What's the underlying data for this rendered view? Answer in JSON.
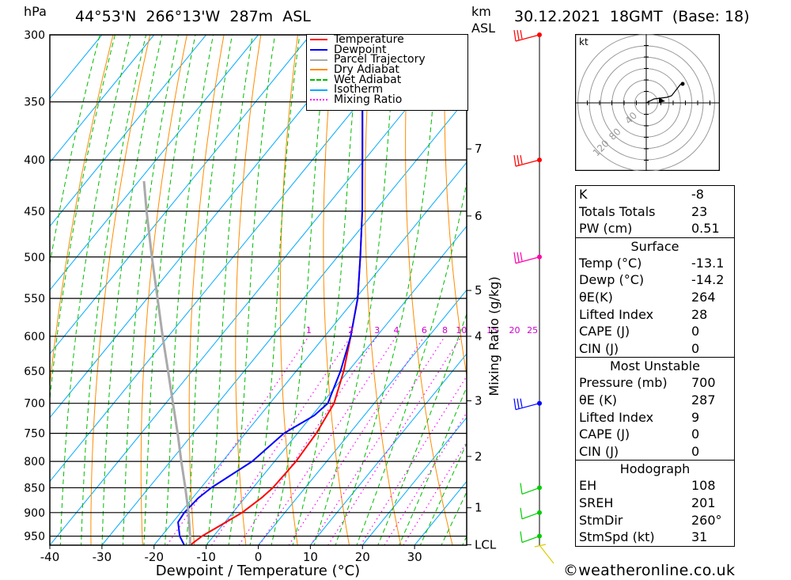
{
  "header": {
    "pressure_unit": "hPa",
    "location": "44°53'N  266°13'W  287m  ASL",
    "km_label": "km",
    "asl_label": "ASL",
    "datetime": "30.12.2021  18GMT  (Base: 18)"
  },
  "legend": {
    "items": [
      {
        "label": "Temperature",
        "color": "#ff0000",
        "style": "solid"
      },
      {
        "label": "Dewpoint",
        "color": "#0000ff",
        "style": "solid"
      },
      {
        "label": "Parcel Trajectory",
        "color": "#aaaaaa",
        "style": "solid"
      },
      {
        "label": "Dry Adiabat",
        "color": "#ff8c00",
        "style": "solid"
      },
      {
        "label": "Wet Adiabat",
        "color": "#00bb00",
        "style": "dashed"
      },
      {
        "label": "Isotherm",
        "color": "#00aaff",
        "style": "solid"
      },
      {
        "label": "Mixing Ratio",
        "color": "#ff00ff",
        "style": "dotted"
      }
    ]
  },
  "chart_data": {
    "type": "line",
    "title": "",
    "xlabel": "Dewpoint / Temperature (°C)",
    "ylabel": "hPa",
    "y2label": "Mixing Ratio (g/kg)",
    "xlim": [
      -40,
      40
    ],
    "ylim": [
      970,
      300
    ],
    "y_scale": "log",
    "skew": true,
    "x_ticks": [
      "-40",
      "-30",
      "-20",
      "-10",
      "0",
      "10",
      "20",
      "30"
    ],
    "x_tick_values": [
      -40,
      -30,
      -20,
      -10,
      0,
      10,
      20,
      30
    ],
    "pressure_levels": [
      300,
      350,
      400,
      450,
      500,
      550,
      600,
      650,
      700,
      750,
      800,
      850,
      900,
      950
    ],
    "km_ticks": [
      {
        "label": "1",
        "p": 890
      },
      {
        "label": "2",
        "p": 791
      },
      {
        "label": "3",
        "p": 696
      },
      {
        "label": "4",
        "p": 600
      },
      {
        "label": "5",
        "p": 540
      },
      {
        "label": "6",
        "p": 455
      },
      {
        "label": "7",
        "p": 390
      },
      {
        "label": "LCL",
        "p": 969
      }
    ],
    "mixing_ratio_labels": [
      "1",
      "2",
      "3",
      "4",
      "6",
      "8",
      "10",
      "15",
      "20",
      "25"
    ],
    "series": [
      {
        "name": "Temperature",
        "color": "#ff0000",
        "points": [
          [
            970,
            -13.1
          ],
          [
            950,
            -12.2
          ],
          [
            920,
            -9.8
          ],
          [
            900,
            -8.2
          ],
          [
            870,
            -6.8
          ],
          [
            850,
            -6.2
          ],
          [
            800,
            -5.9
          ],
          [
            750,
            -6.4
          ],
          [
            700,
            -7.7
          ],
          [
            650,
            -10.9
          ],
          [
            600,
            -15.0
          ],
          [
            550,
            -19.6
          ],
          [
            500,
            -25.6
          ],
          [
            450,
            -32.4
          ],
          [
            400,
            -40.4
          ],
          [
            350,
            -49.5
          ],
          [
            300,
            -58.7
          ]
        ]
      },
      {
        "name": "Dewpoint",
        "color": "#0000ff",
        "points": [
          [
            970,
            -14.2
          ],
          [
            950,
            -16.5
          ],
          [
            920,
            -19.0
          ],
          [
            900,
            -19.3
          ],
          [
            870,
            -18.9
          ],
          [
            850,
            -18.0
          ],
          [
            800,
            -14.3
          ],
          [
            750,
            -12.6
          ],
          [
            720,
            -9.6
          ],
          [
            700,
            -8.9
          ],
          [
            650,
            -11.5
          ],
          [
            600,
            -15.0
          ],
          [
            550,
            -19.6
          ],
          [
            500,
            -25.6
          ],
          [
            450,
            -32.4
          ],
          [
            400,
            -40.4
          ],
          [
            350,
            -49.5
          ],
          [
            300,
            -58.7
          ]
        ]
      },
      {
        "name": "Parcel Trajectory",
        "color": "#aaaaaa",
        "points": [
          [
            970,
            -13.1
          ],
          [
            950,
            -14.5
          ],
          [
            900,
            -18.5
          ],
          [
            850,
            -23.0
          ],
          [
            800,
            -27.9
          ],
          [
            750,
            -33.0
          ],
          [
            700,
            -38.6
          ],
          [
            650,
            -44.6
          ],
          [
            600,
            -51.1
          ],
          [
            550,
            -58.0
          ],
          [
            500,
            -65.6
          ],
          [
            450,
            -73.8
          ],
          [
            420,
            -79.0
          ]
        ]
      }
    ],
    "wind_barbs_p": [
      300,
      400,
      500,
      700,
      850,
      900,
      950
    ],
    "hodograph": {
      "unit": "kt",
      "ring_labels": [
        "40",
        "80",
        "120"
      ],
      "rings_kt": [
        20,
        40,
        60,
        80,
        100,
        120
      ]
    }
  },
  "indices": {
    "rows": [
      {
        "label": "K",
        "value": "-8"
      },
      {
        "label": "Totals Totals",
        "value": "23"
      },
      {
        "label": "PW (cm)",
        "value": "0.51"
      }
    ],
    "surface": {
      "title": "Surface",
      "rows": [
        {
          "label": "Temp (°C)",
          "value": "-13.1"
        },
        {
          "label": "Dewp (°C)",
          "value": "-14.2"
        },
        {
          "label": "θE(K)",
          "value": "264"
        },
        {
          "label": "Lifted Index",
          "value": "28"
        },
        {
          "label": "CAPE (J)",
          "value": "0"
        },
        {
          "label": "CIN (J)",
          "value": "0"
        }
      ]
    },
    "most_unstable": {
      "title": "Most Unstable",
      "rows": [
        {
          "label": "Pressure (mb)",
          "value": "700"
        },
        {
          "label": "θE (K)",
          "value": "287"
        },
        {
          "label": "Lifted Index",
          "value": "9"
        },
        {
          "label": "CAPE (J)",
          "value": "0"
        },
        {
          "label": "CIN (J)",
          "value": "0"
        }
      ]
    },
    "hodograph": {
      "title": "Hodograph",
      "rows": [
        {
          "label": "EH",
          "value": "108"
        },
        {
          "label": "SREH",
          "value": "201"
        },
        {
          "label": "StmDir",
          "value": "260°"
        },
        {
          "label": "StmSpd (kt)",
          "value": "31"
        }
      ]
    }
  },
  "footer": {
    "copyright": "©weatheronline.co.uk"
  }
}
